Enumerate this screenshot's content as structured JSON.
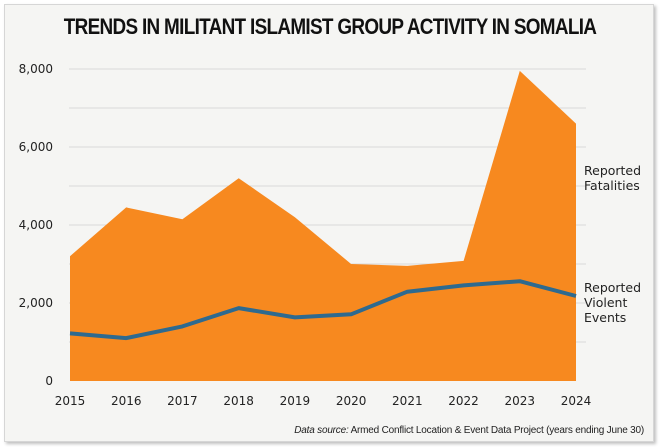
{
  "chart_data": {
    "type": "area",
    "title": "TRENDS IN MILITANT ISLAMIST GROUP ACTIVITY IN SOMALIA",
    "xlabel": "",
    "ylabel": "",
    "x": [
      "2015",
      "2016",
      "2017",
      "2018",
      "2019",
      "2020",
      "2021",
      "2022",
      "2023",
      "2024"
    ],
    "ylim": [
      0,
      8000
    ],
    "yticks": [
      0,
      2000,
      4000,
      6000,
      8000
    ],
    "ytick_labels": [
      "0",
      "2,000",
      "4,000",
      "6,000",
      "8,000"
    ],
    "grid": true,
    "gridline_step": 1000,
    "series": [
      {
        "name": "Reported Fatalities",
        "label_lines": [
          "Reported",
          "Fatalities"
        ],
        "kind": "area",
        "color": "#f7891f",
        "values": [
          3200,
          4450,
          4150,
          5200,
          4200,
          3000,
          2950,
          3080,
          7950,
          6600
        ]
      },
      {
        "name": "Reported Violent Events",
        "label_lines": [
          "Reported",
          "Violent",
          "Events"
        ],
        "kind": "line",
        "color": "#2e6a8f",
        "values": [
          1220,
          1100,
          1400,
          1870,
          1630,
          1710,
          2290,
          2450,
          2560,
          2180
        ]
      }
    ],
    "legend": "right",
    "source_prefix": "Data source:",
    "source_text": " Armed Conflict Location & Event Data Project (years ending June 30)"
  }
}
